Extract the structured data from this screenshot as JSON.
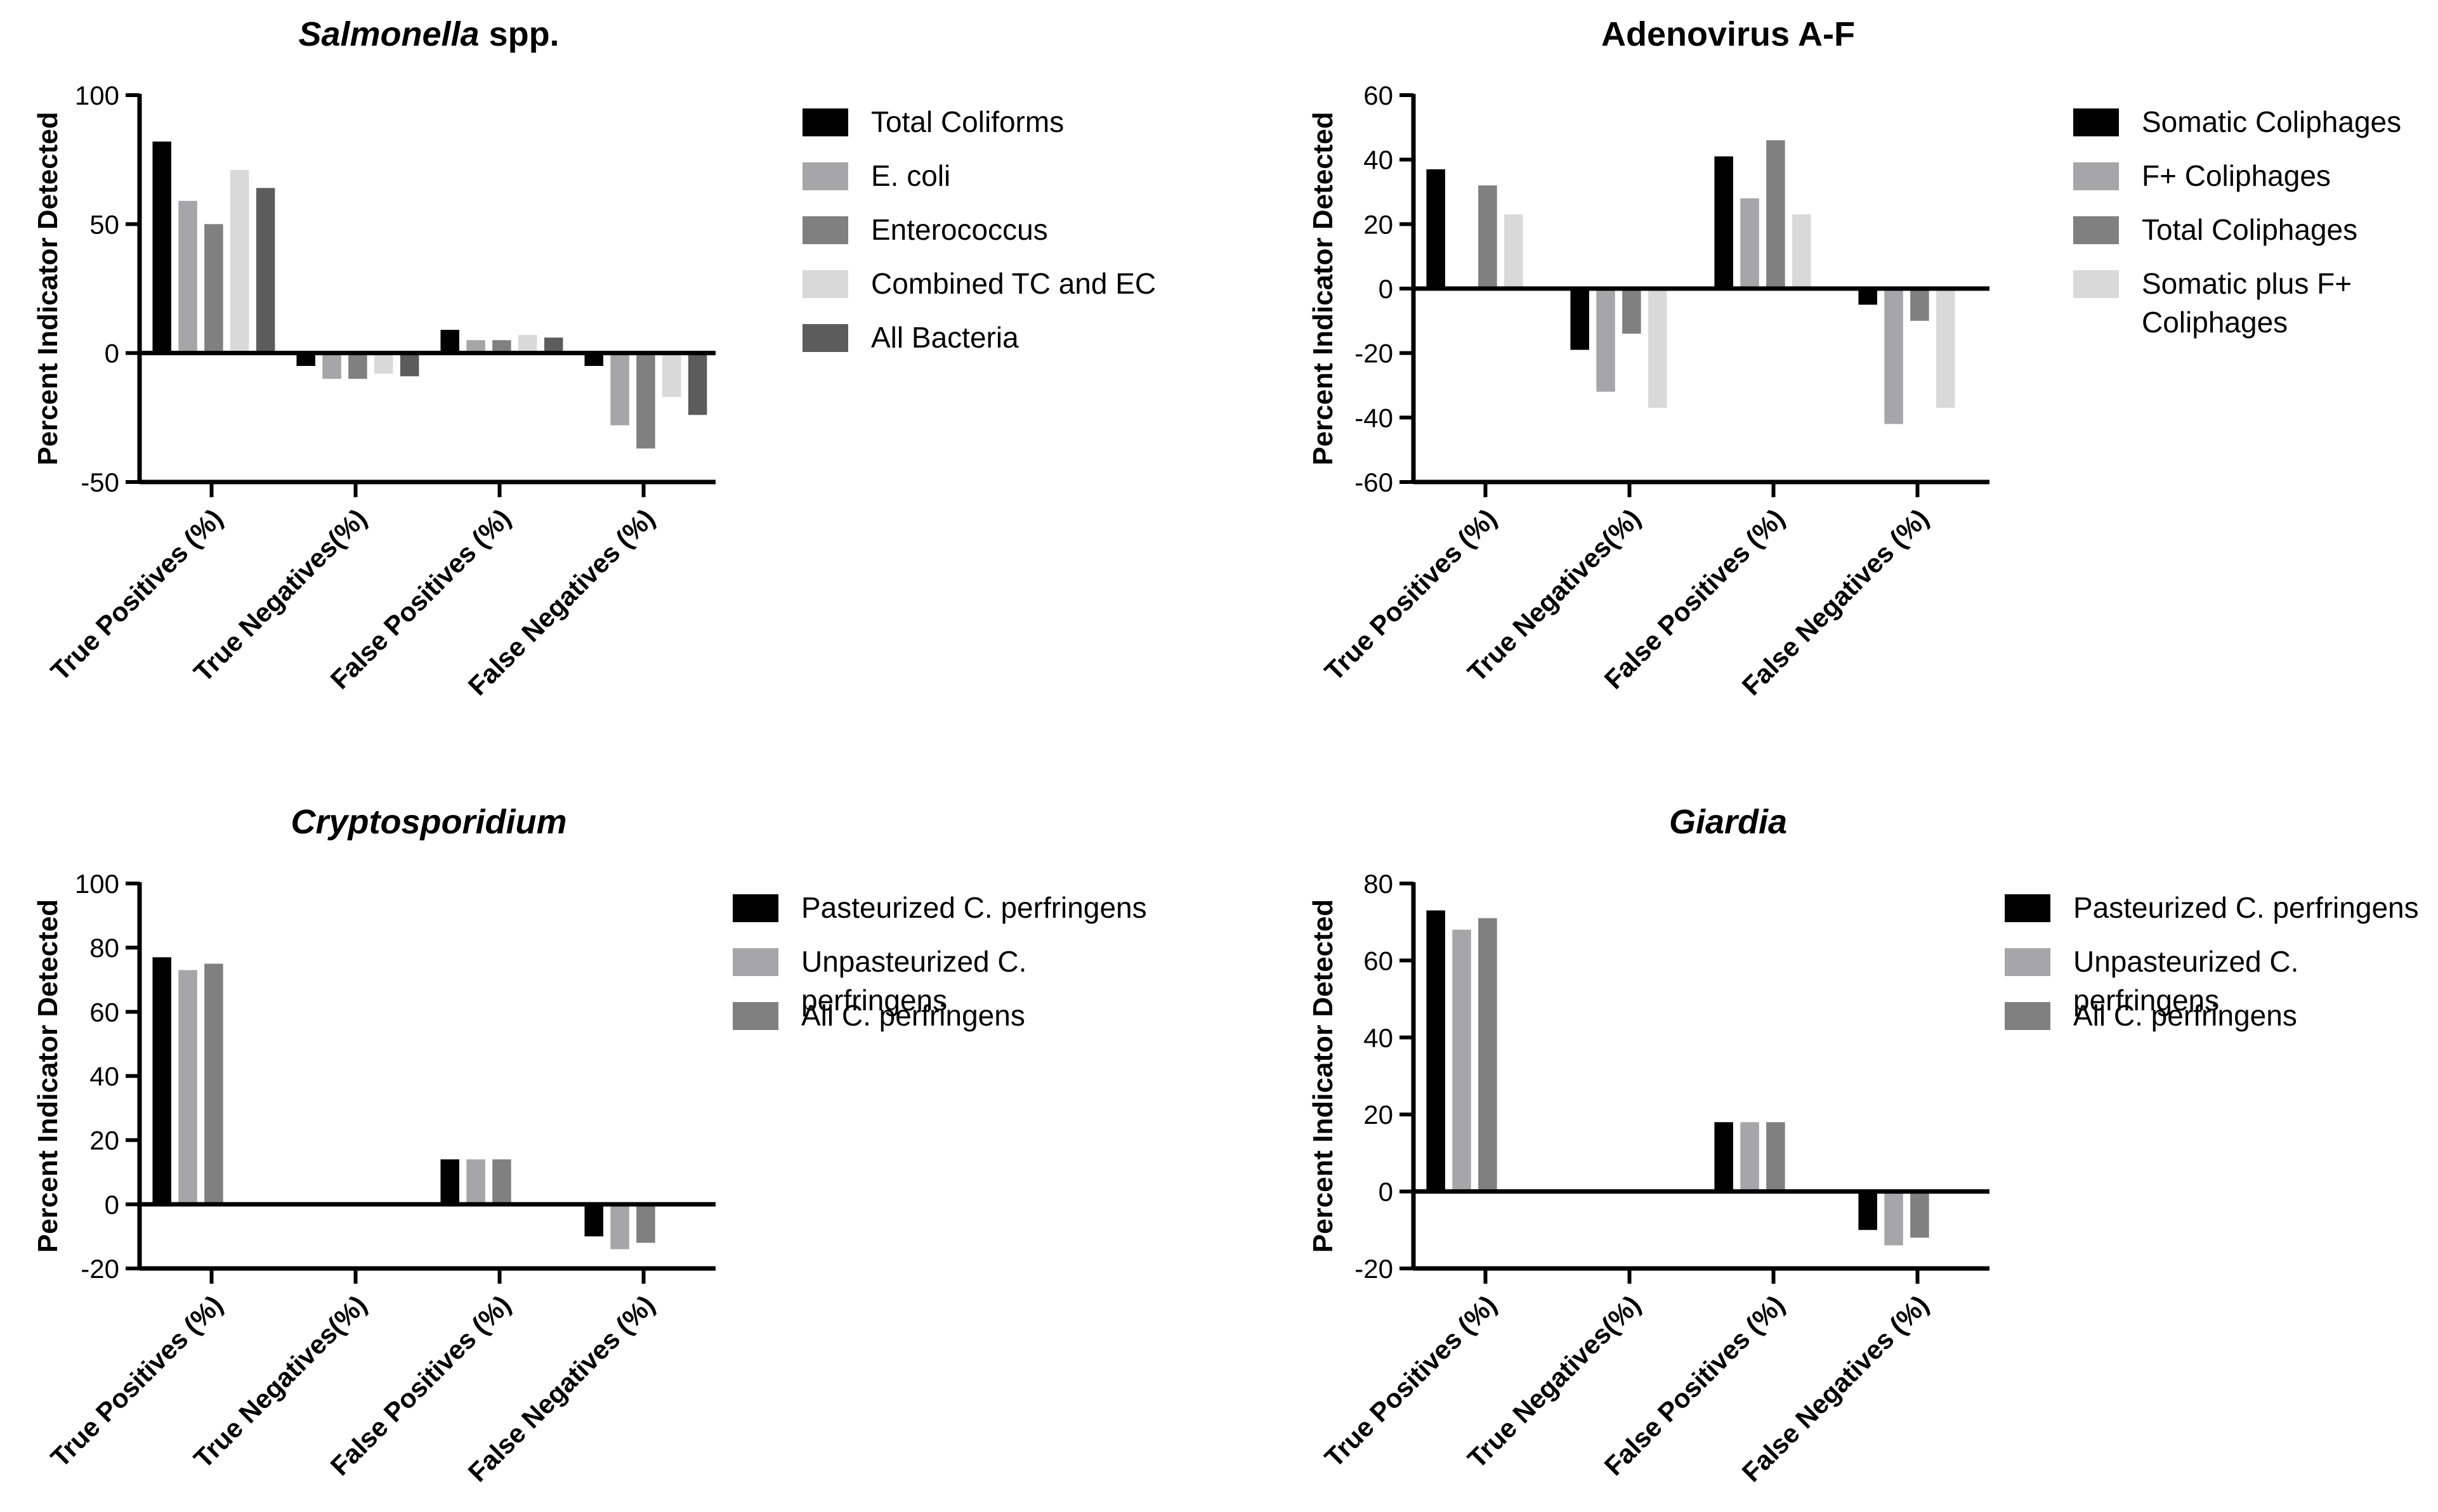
{
  "chart_data": [
    {
      "type": "bar",
      "title": "Salmonella spp.",
      "title_italic": "Salmonella",
      "title_rest": " spp.",
      "ylabel": "Percent Indicator Detected",
      "xlabel": "",
      "ylim": [
        -50,
        100
      ],
      "yticks": [
        100,
        50,
        0,
        -50
      ],
      "categories": [
        "True Positives (%)",
        "True Negatives(%)",
        "False Positives (%)",
        "False Negatives (%)"
      ],
      "series": [
        {
          "name": "Total Coliforms",
          "color": "#000000",
          "values": [
            82,
            -5,
            9,
            -5
          ]
        },
        {
          "name": "E. coli",
          "color": "#a6a6a8",
          "values": [
            59,
            -10,
            5,
            -28
          ]
        },
        {
          "name": "Enterococcus",
          "color": "#808080",
          "values": [
            50,
            -10,
            5,
            -37
          ]
        },
        {
          "name": "Combined TC and EC",
          "color": "#d9d9d9",
          "values": [
            71,
            -8,
            7,
            -17
          ]
        },
        {
          "name": "All Bacteria",
          "color": "#5c5c5c",
          "values": [
            64,
            -9,
            6,
            -24
          ]
        }
      ]
    },
    {
      "type": "bar",
      "title": "Adenovirus A-F",
      "title_italic": "",
      "title_rest": "Adenovirus A-F",
      "ylabel": "Percent Indicator Detected",
      "xlabel": "",
      "ylim": [
        -60,
        60
      ],
      "yticks": [
        60,
        40,
        20,
        0,
        -20,
        -40,
        -60
      ],
      "categories": [
        "True Positives (%)",
        "True Negatives(%)",
        "False Positives (%)",
        "False Negatives (%)"
      ],
      "series": [
        {
          "name": "Somatic Coliphages",
          "color": "#000000",
          "values": [
            37,
            -19,
            41,
            -5
          ]
        },
        {
          "name": "F+ Coliphages",
          "color": "#a6a6a8",
          "values": [
            0,
            -32,
            28,
            -42
          ]
        },
        {
          "name": "Total Coliphages",
          "color": "#808080",
          "values": [
            32,
            -14,
            46,
            -10
          ]
        },
        {
          "name": "Somatic plus F+ Coliphages",
          "color": "#d9d9d9",
          "values": [
            23,
            -37,
            23,
            -37
          ]
        }
      ]
    },
    {
      "type": "bar",
      "title": "Cryptosporidium",
      "title_italic": "Cryptosporidium",
      "title_rest": "",
      "ylabel": "Percent Indicator Detected",
      "xlabel": "",
      "ylim": [
        -20,
        100
      ],
      "yticks": [
        100,
        80,
        60,
        40,
        20,
        0,
        -20
      ],
      "categories": [
        "True Positives (%)",
        "True Negatives(%)",
        "False Positives (%)",
        "False Negatives (%)"
      ],
      "series": [
        {
          "name": "Pasteurized C. perfringens",
          "color": "#000000",
          "values": [
            77,
            0,
            14,
            -10
          ]
        },
        {
          "name": "Unpasteurized C. perfringens",
          "color": "#a6a6a8",
          "values": [
            73,
            0,
            14,
            -14
          ]
        },
        {
          "name": "All C. perfringens",
          "color": "#808080",
          "values": [
            75,
            0,
            14,
            -12
          ]
        }
      ]
    },
    {
      "type": "bar",
      "title": "Giardia",
      "title_italic": "Giardia",
      "title_rest": "",
      "ylabel": "Percent Indicator Detected",
      "xlabel": "",
      "ylim": [
        -20,
        80
      ],
      "yticks": [
        80,
        60,
        40,
        20,
        0,
        -20
      ],
      "categories": [
        "True Positives (%)",
        "True Negatives(%)",
        "False Positives (%)",
        "False Negatives (%)"
      ],
      "series": [
        {
          "name": "Pasteurized C. perfringens",
          "color": "#000000",
          "values": [
            73,
            0,
            18,
            -10
          ]
        },
        {
          "name": "Unpasteurized C. perfringens",
          "color": "#a6a6a8",
          "values": [
            68,
            0,
            18,
            -14
          ]
        },
        {
          "name": "All C. perfringens",
          "color": "#808080",
          "values": [
            71,
            0,
            18,
            -12
          ]
        }
      ]
    }
  ]
}
